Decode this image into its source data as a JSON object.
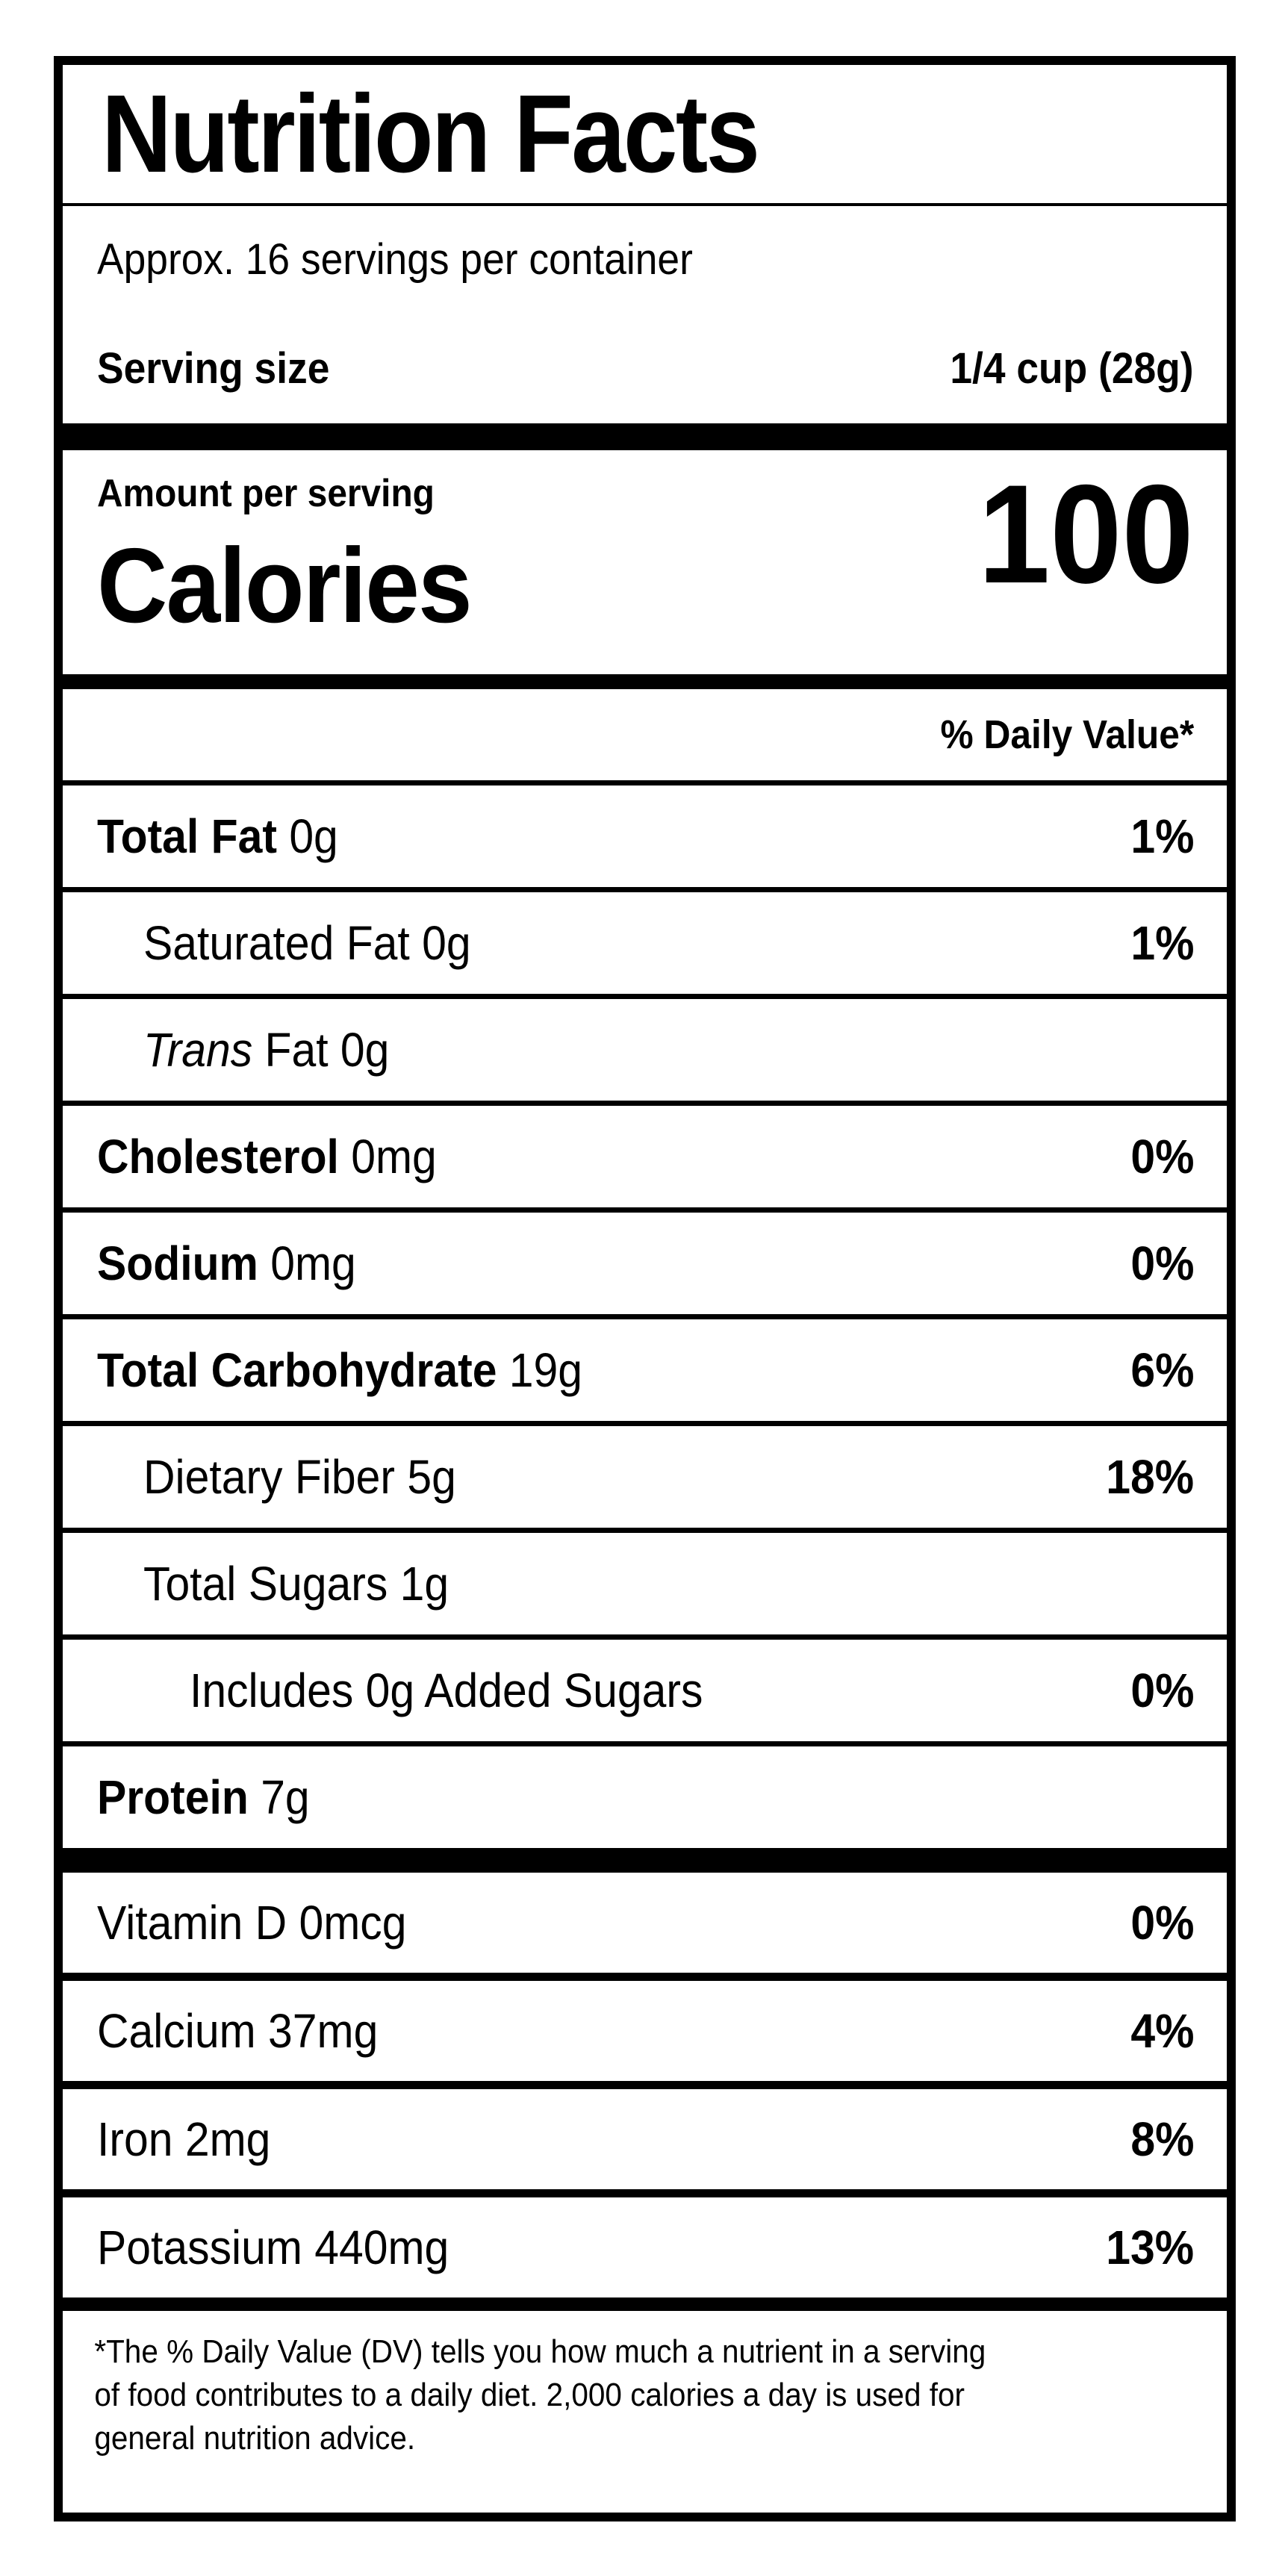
{
  "label": {
    "title": "Nutrition Facts",
    "servings_per_container": "Approx. 16 servings per container",
    "serving_size_label": "Serving size",
    "serving_size_value": "1/4 cup (28g)",
    "amount_per_serving": "Amount per serving",
    "calories_label": "Calories",
    "calories_value": "100",
    "daily_value_header": "% Daily Value*",
    "nutrients": [
      {
        "bold": "Total Fat ",
        "rest": "0g",
        "dv": "1%"
      },
      {
        "bold": "",
        "rest": "Saturated Fat 0g",
        "dv": "1%"
      },
      {
        "italic": "Trans ",
        "rest": "Fat 0g",
        "dv": ""
      },
      {
        "bold": "Cholesterol ",
        "rest": "0mg",
        "dv": "0%"
      },
      {
        "bold": "Sodium ",
        "rest": "0mg",
        "dv": "0%"
      },
      {
        "bold": "Total Carbohydrate ",
        "rest": "19g",
        "dv": "6%"
      },
      {
        "bold": "",
        "rest": "Dietary Fiber 5g",
        "dv": "18%"
      },
      {
        "bold": "",
        "rest": "Total Sugars 1g",
        "dv": ""
      },
      {
        "bold": "",
        "rest": "Includes 0g Added Sugars",
        "dv": "0%"
      },
      {
        "bold": "Protein ",
        "rest": "7g",
        "dv": ""
      }
    ],
    "vitamins": [
      {
        "name": "Vitamin D 0mcg",
        "dv": "0%"
      },
      {
        "name": "Calcium 37mg",
        "dv": "4%"
      },
      {
        "name": "Iron 2mg",
        "dv": "8%"
      },
      {
        "name": "Potassium 440mg",
        "dv": "13%"
      }
    ],
    "footnote_lines": [
      "*The % Daily Value (DV) tells you how much a nutrient in a serving",
      "of food contributes to a daily diet. 2,000 calories a day is used for",
      "general nutrition advice."
    ],
    "colors": {
      "ink": "#000000",
      "paper": "#ffffff"
    }
  }
}
